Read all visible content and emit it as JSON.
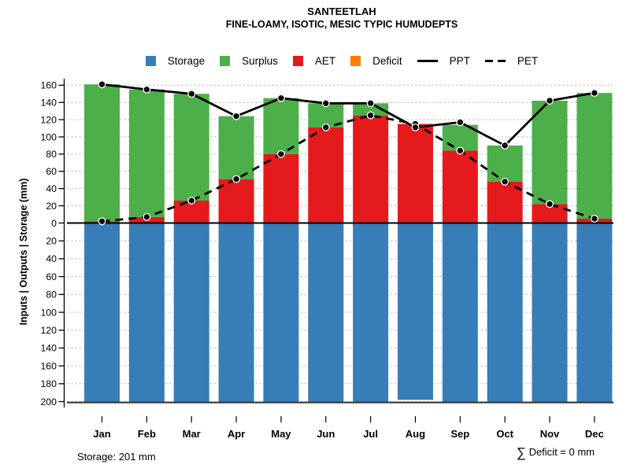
{
  "chart_data": {
    "type": "bar",
    "title": "SANTEETLAH",
    "subtitle": "FINE-LOAMY, ISOTIC, MESIC TYPIC HUMUDEPTS",
    "ylabel": "Inputs | Outputs | Storage  (mm)",
    "categories": [
      "Jan",
      "Feb",
      "Mar",
      "Apr",
      "May",
      "Jun",
      "Jul",
      "Aug",
      "Sep",
      "Oct",
      "Nov",
      "Dec"
    ],
    "axis": {
      "upper_ticks": [
        0,
        20,
        40,
        60,
        80,
        100,
        120,
        140,
        160
      ],
      "lower_ticks": [
        20,
        40,
        60,
        80,
        100,
        120,
        140,
        160,
        180,
        200
      ],
      "upper_max": 160,
      "lower_max": 200,
      "grid": true
    },
    "legend": [
      {
        "label": "Storage",
        "swatch": "square",
        "color": "#377EB8"
      },
      {
        "label": "Surplus",
        "swatch": "square",
        "color": "#4DAF4A"
      },
      {
        "label": "AET",
        "swatch": "square",
        "color": "#E41A1C"
      },
      {
        "label": "Deficit",
        "swatch": "square",
        "color": "#FF7F00"
      },
      {
        "label": "PPT",
        "swatch": "solid-line",
        "color": "#000000"
      },
      {
        "label": "PET",
        "swatch": "dashed-line",
        "color": "#000000"
      }
    ],
    "series": [
      {
        "name": "Storage",
        "kind": "bar-down",
        "color": "#377EB8",
        "values": [
          201,
          201,
          201,
          201,
          201,
          201,
          201,
          198,
          201,
          201,
          201,
          201
        ]
      },
      {
        "name": "AET",
        "kind": "bar-up",
        "color": "#E41A1C",
        "values": [
          2,
          7,
          26,
          51,
          80,
          111,
          125,
          115,
          84,
          48,
          22,
          5
        ]
      },
      {
        "name": "Surplus",
        "kind": "bar-up-stacked",
        "color": "#4DAF4A",
        "values": [
          159,
          148,
          124,
          73,
          65,
          28,
          14,
          0,
          30,
          42,
          120,
          146
        ]
      },
      {
        "name": "Deficit",
        "kind": "bar-up",
        "color": "#FF7F00",
        "values": [
          0,
          0,
          0,
          0,
          0,
          0,
          0,
          0,
          0,
          0,
          0,
          0
        ]
      },
      {
        "name": "PPT",
        "kind": "line-solid",
        "color": "#000000",
        "values": [
          161,
          155,
          150,
          124,
          145,
          139,
          139,
          111,
          117,
          90,
          142,
          151
        ]
      },
      {
        "name": "PET",
        "kind": "line-dashed",
        "color": "#000000",
        "values": [
          2,
          7,
          26,
          51,
          80,
          111,
          125,
          115,
          84,
          48,
          22,
          5
        ]
      }
    ],
    "storage_capacity_mm": 201,
    "grid_color": "#bcbcbc",
    "zero_line_color": "#000000"
  },
  "annotations": {
    "storage_label": "Storage: 201 mm",
    "deficit_sum_symbol": "∑",
    "deficit_label": " Deficit = 0 mm"
  }
}
